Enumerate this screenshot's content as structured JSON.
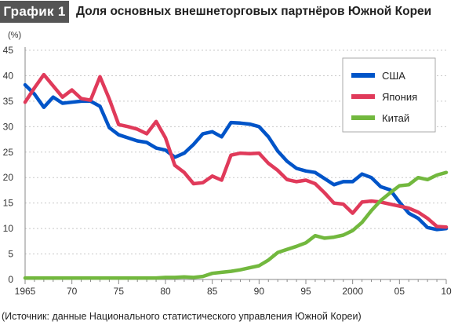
{
  "header": {
    "badge": "График 1",
    "title": "Доля основных внешнеторговых партнёров Южной Кореи"
  },
  "source": "(Источник: данные Национального статистического управления Южной Кореи)",
  "colors": {
    "usa": "#0054c8",
    "japan": "#e03a5a",
    "china": "#72b83e",
    "axis": "#888888",
    "grid": "#c8c8c8"
  },
  "chart_data": {
    "type": "line",
    "title": "Доля основных внешнеторговых партнёров Южной Кореи",
    "ylabel": "(%)",
    "xlabel": "",
    "xlim": [
      1965,
      2010
    ],
    "ylim": [
      0,
      45
    ],
    "yticks": [
      0,
      5,
      10,
      15,
      20,
      25,
      30,
      35,
      40,
      45
    ],
    "xticks": [
      {
        "value": 1965,
        "label": "1965"
      },
      {
        "value": 1970,
        "label": "70"
      },
      {
        "value": 1975,
        "label": "75"
      },
      {
        "value": 1980,
        "label": "80"
      },
      {
        "value": 1985,
        "label": "85"
      },
      {
        "value": 1990,
        "label": "90"
      },
      {
        "value": 1995,
        "label": "95"
      },
      {
        "value": 2000,
        "label": "2000"
      },
      {
        "value": 2005,
        "label": "05"
      },
      {
        "value": 2010,
        "label": "10"
      }
    ],
    "grid": "horizontal-dashed",
    "legend_position": "top-right",
    "x": [
      1965,
      1966,
      1967,
      1968,
      1969,
      1970,
      1971,
      1972,
      1973,
      1974,
      1975,
      1976,
      1977,
      1978,
      1979,
      1980,
      1981,
      1982,
      1983,
      1984,
      1985,
      1986,
      1987,
      1988,
      1989,
      1990,
      1991,
      1992,
      1993,
      1994,
      1995,
      1996,
      1997,
      1998,
      1999,
      2000,
      2001,
      2002,
      2003,
      2004,
      2005,
      2006,
      2007,
      2008,
      2009,
      2010
    ],
    "series": [
      {
        "name": "США",
        "color": "#0054c8",
        "values": [
          38.2,
          36.4,
          33.8,
          35.8,
          34.6,
          34.8,
          35.0,
          35.0,
          34.0,
          29.8,
          28.4,
          27.8,
          27.2,
          26.9,
          25.8,
          25.4,
          24.0,
          24.8,
          26.5,
          28.6,
          29.0,
          28.0,
          30.8,
          30.7,
          30.5,
          30.0,
          28.0,
          25.2,
          23.2,
          21.8,
          21.3,
          21.0,
          19.8,
          18.6,
          19.2,
          19.2,
          20.7,
          20.0,
          18.2,
          17.6,
          15.2,
          13.0,
          12.0,
          10.2,
          9.8,
          10.0
        ]
      },
      {
        "name": "Япония",
        "color": "#e03a5a",
        "values": [
          34.8,
          37.6,
          40.2,
          38.0,
          35.8,
          37.2,
          35.5,
          35.2,
          39.8,
          35.4,
          30.4,
          30.0,
          29.5,
          28.6,
          31.0,
          27.8,
          22.4,
          21.0,
          18.8,
          19.0,
          20.3,
          19.5,
          24.4,
          24.8,
          24.7,
          24.8,
          22.8,
          21.4,
          19.6,
          19.2,
          19.5,
          18.8,
          17.0,
          15.0,
          14.8,
          13.0,
          15.2,
          15.4,
          15.2,
          14.8,
          14.4,
          14.0,
          13.2,
          12.0,
          10.4,
          10.3
        ]
      },
      {
        "name": "Китай",
        "color": "#72b83e",
        "values": [
          0.3,
          0.3,
          0.3,
          0.3,
          0.3,
          0.3,
          0.3,
          0.3,
          0.3,
          0.3,
          0.3,
          0.3,
          0.3,
          0.3,
          0.3,
          0.4,
          0.4,
          0.5,
          0.4,
          0.6,
          1.2,
          1.4,
          1.6,
          1.9,
          2.3,
          2.7,
          3.8,
          5.3,
          5.9,
          6.5,
          7.2,
          8.6,
          8.1,
          8.3,
          8.7,
          9.6,
          11.2,
          13.5,
          15.5,
          17.0,
          18.4,
          18.6,
          20.0,
          19.6,
          20.5,
          21.0
        ]
      }
    ]
  }
}
